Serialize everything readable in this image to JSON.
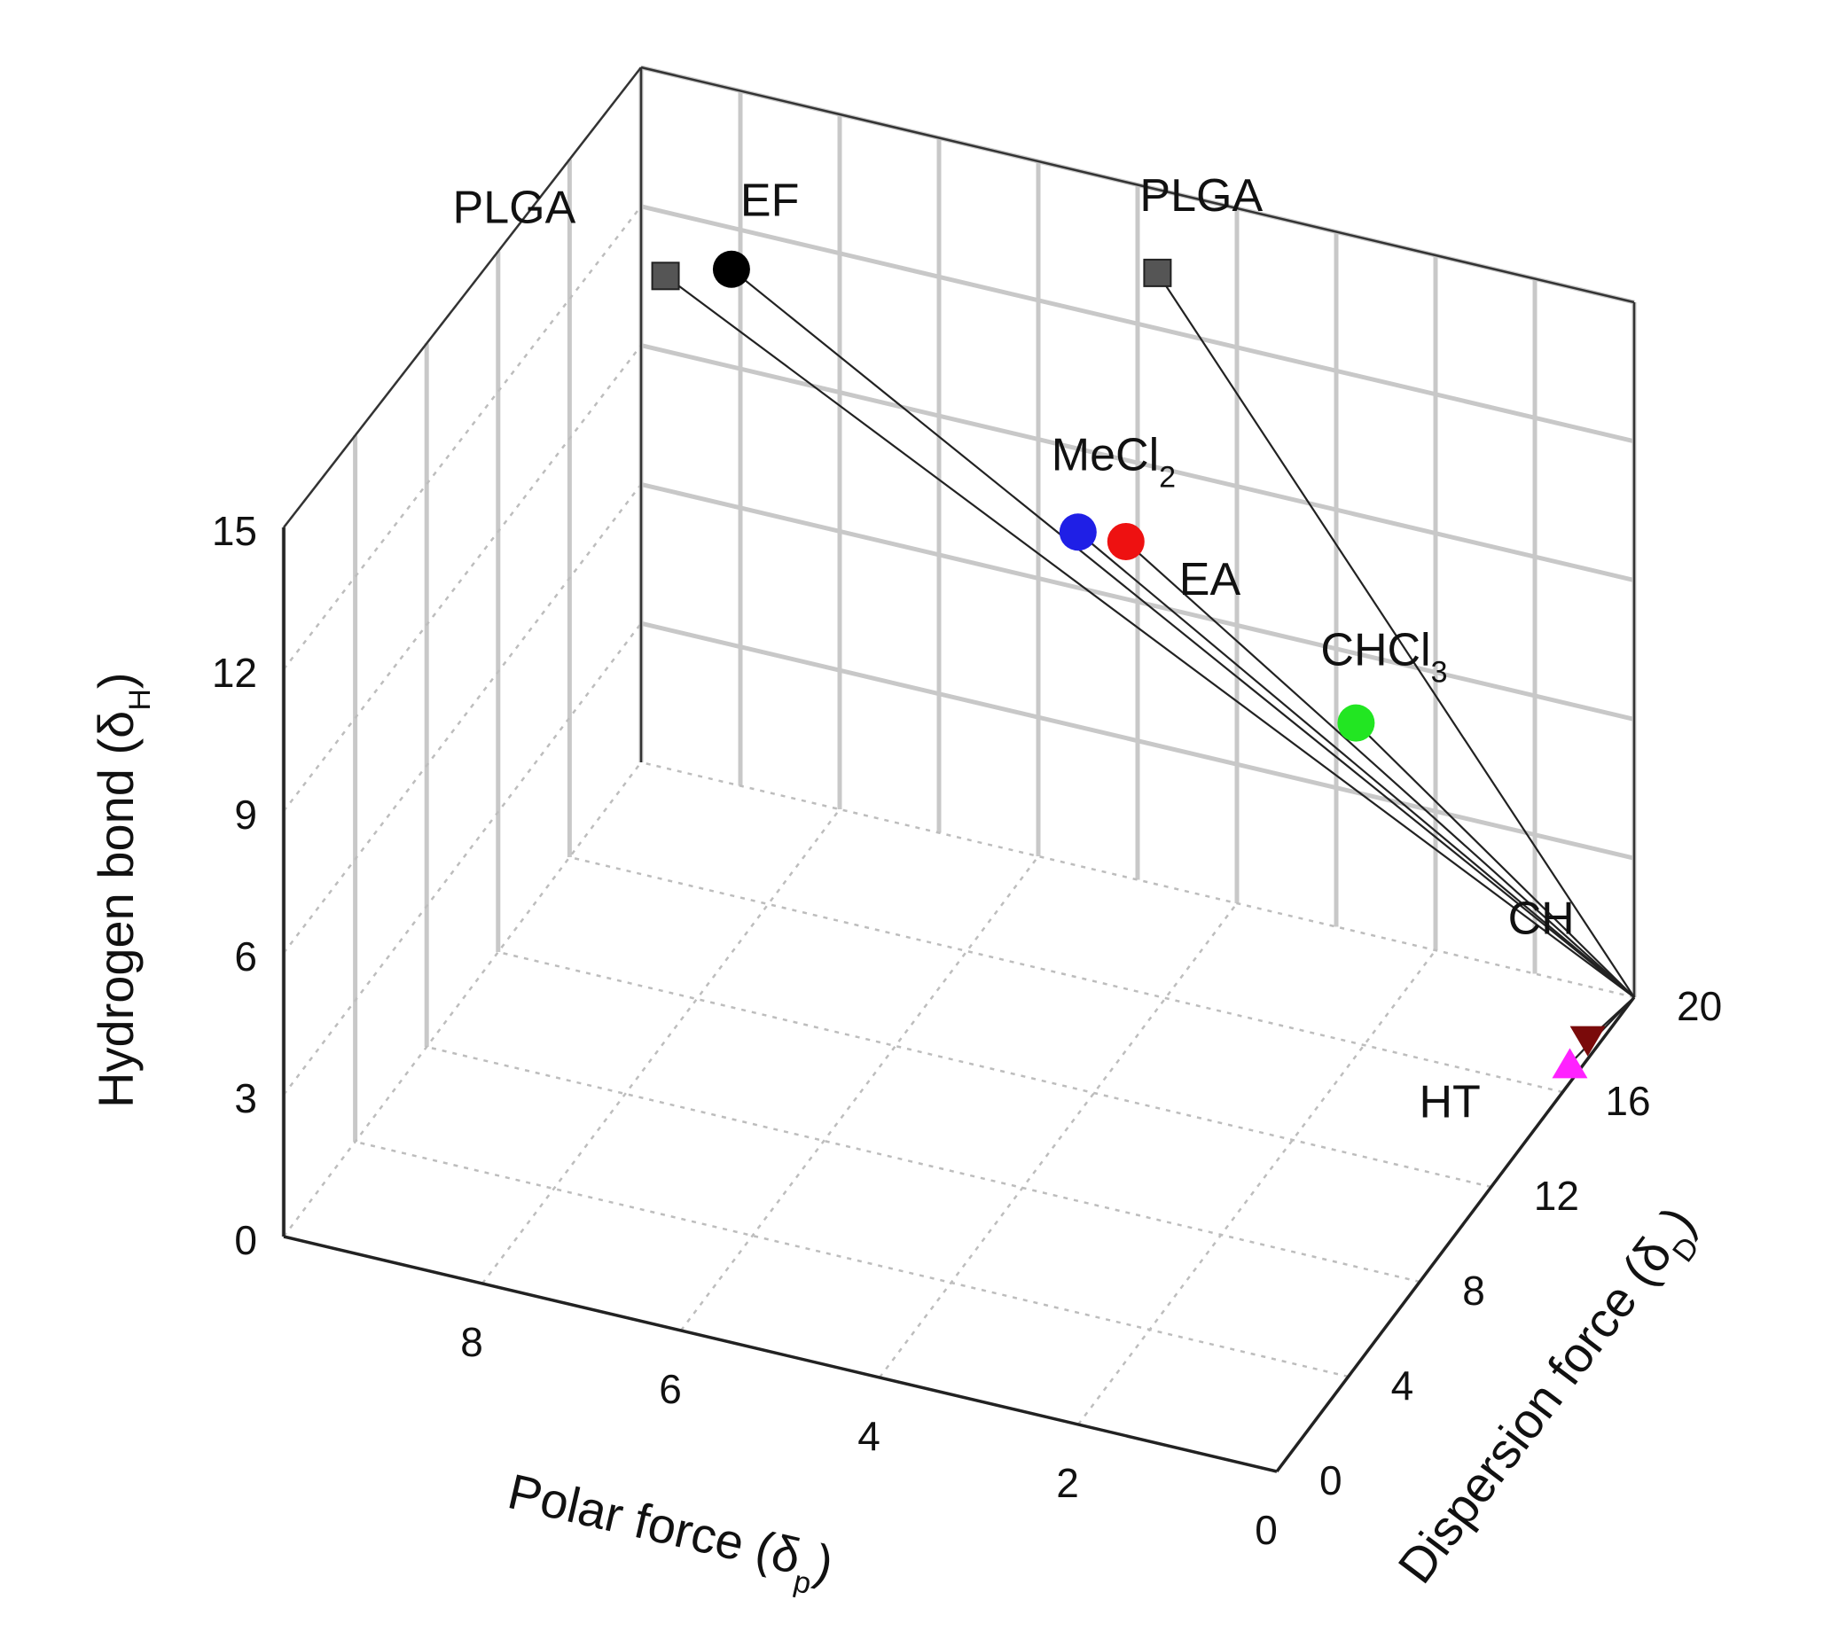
{
  "chart_data": {
    "type": "scatter3d",
    "title": "",
    "axes": {
      "x": {
        "label": "Polar force (δ",
        "sub": "p",
        "close": ")",
        "range": [
          0,
          10
        ],
        "ticks": [
          "0",
          "2",
          "4",
          "6",
          "8"
        ]
      },
      "y": {
        "label": "Dispersion force (δ",
        "sub": "D",
        "close": ")",
        "range": [
          0,
          20
        ],
        "ticks": [
          "0",
          "4",
          "8",
          "12",
          "16",
          "20"
        ]
      },
      "z": {
        "label": "Hydrogen bond (δ",
        "sub": "H",
        "close": ")",
        "range": [
          0,
          15
        ],
        "ticks": [
          "0",
          "3",
          "6",
          "9",
          "12",
          "15"
        ]
      }
    },
    "origin_of_lines": {
      "p": 0,
      "d": 20,
      "h": 0
    },
    "points": [
      {
        "label": "PLGA",
        "sub": "",
        "marker": "square",
        "color": "#555555",
        "p": 9.7,
        "d": 19.7,
        "h": 10.8
      },
      {
        "label": "EF",
        "sub": "",
        "marker": "circle",
        "color": "#000000",
        "p": 9.0,
        "d": 19.5,
        "h": 11.4
      },
      {
        "label": "PLGA",
        "sub": "",
        "marker": "square",
        "color": "#555555",
        "p": 4.8,
        "d": 20.0,
        "h": 13.2
      },
      {
        "label": "MeCl",
        "sub": "2",
        "marker": "circle",
        "color": "#1f1fe6",
        "p": 5.6,
        "d": 20.0,
        "h": 7.2
      },
      {
        "label": "EA",
        "sub": "",
        "marker": "circle",
        "color": "#ee1111",
        "p": 5.1,
        "d": 19.9,
        "h": 7.3
      },
      {
        "label": "CHCl",
        "sub": "3",
        "marker": "circle",
        "color": "#22e622",
        "p": 2.8,
        "d": 20.0,
        "h": 4.5
      },
      {
        "label": "CH",
        "sub": "",
        "marker": "triangle-down",
        "color": "#7a0a0a",
        "p": 0.0,
        "d": 17.4,
        "h": 0.4
      },
      {
        "label": "HT",
        "sub": "",
        "marker": "triangle-up",
        "color": "#ff22ff",
        "p": 0.0,
        "d": 16.4,
        "h": 0.4
      }
    ]
  }
}
